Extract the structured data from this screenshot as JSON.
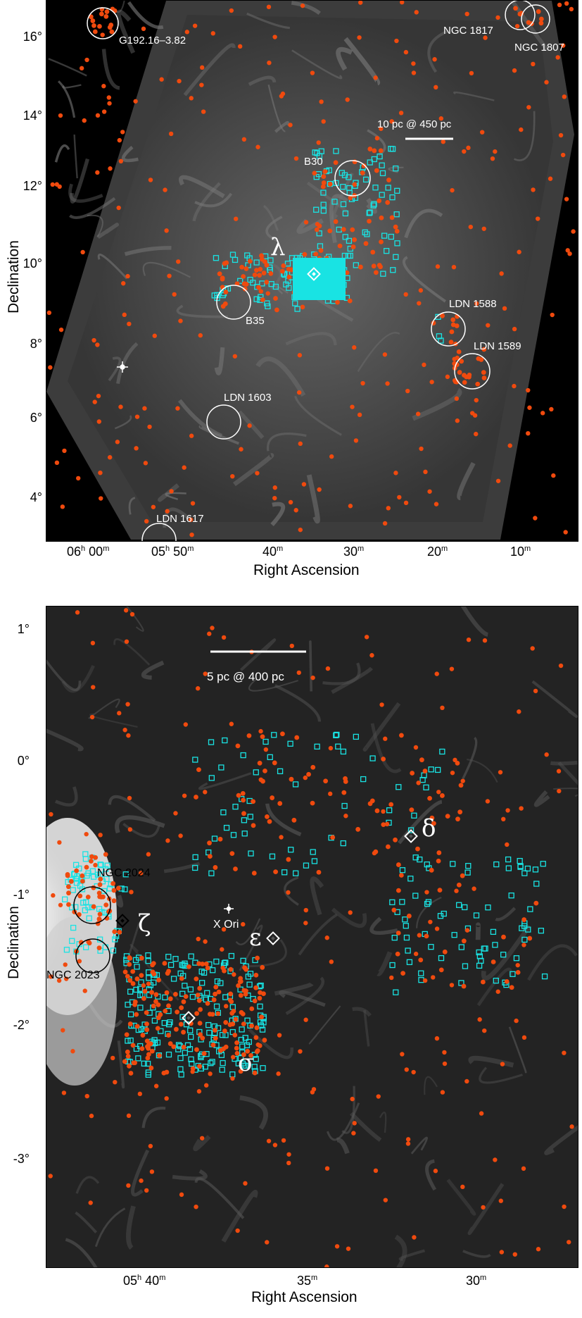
{
  "top": {
    "xlabel": "Right Ascension",
    "ylabel": "Declination",
    "yticks": [
      "16°",
      "14°",
      "12°",
      "10°",
      "8°",
      "6°",
      "4°"
    ],
    "xticks": [
      {
        "h": "06",
        "hu": "h",
        "m": "00",
        "mu": "m"
      },
      {
        "h": "05",
        "hu": "h",
        "m": "50",
        "mu": "m"
      },
      {
        "h": "",
        "hu": "",
        "m": "40",
        "mu": "m"
      },
      {
        "h": "",
        "hu": "",
        "m": "30",
        "mu": "m"
      },
      {
        "h": "",
        "hu": "",
        "m": "20",
        "mu": "m"
      },
      {
        "h": "",
        "hu": "",
        "m": "10",
        "mu": "m"
      }
    ],
    "scale_bar": "10 pc @ 450 pc",
    "regions": [
      "G192.16–3.82",
      "NGC 1817",
      "NGC 1807",
      "B30",
      "B35",
      "LDN 1588",
      "LDN 1589",
      "LDN 1603",
      "LDN 1617"
    ],
    "star": "λ"
  },
  "bottom": {
    "xlabel": "Right Ascension",
    "ylabel": "Declination",
    "yticks": [
      "1°",
      "0°",
      "-1°",
      "-2°",
      "-3°"
    ],
    "xticks": [
      {
        "h": "05",
        "hu": "h",
        "m": "40",
        "mu": "m"
      },
      {
        "h": "",
        "hu": "",
        "m": "35",
        "mu": "m"
      },
      {
        "h": "",
        "hu": "",
        "m": "30",
        "mu": "m"
      }
    ],
    "scale_bar": "5 pc @ 400 pc",
    "regions": [
      "NGC 2024",
      "NGC 2023",
      "X Ori"
    ],
    "stars": [
      "δ",
      "ε",
      "ζ",
      "σ"
    ]
  },
  "colors": {
    "sky": "#000000",
    "nebula": "#5a5a5a",
    "orange_marker": "#f04a0e",
    "cyan_marker": "#19e3e3",
    "text": "#ffffff"
  }
}
